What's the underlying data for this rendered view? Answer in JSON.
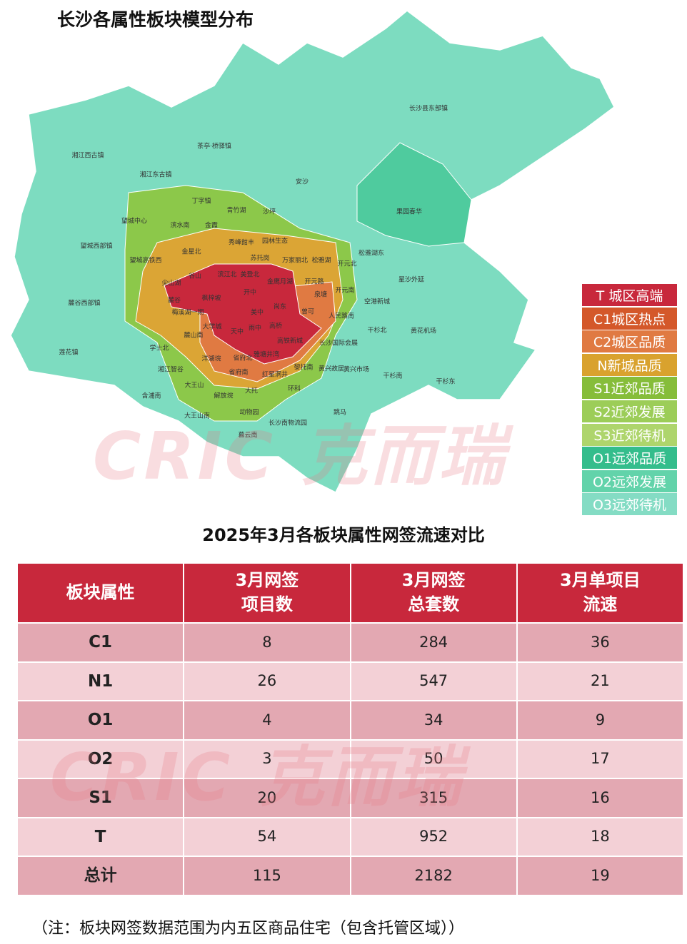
{
  "header": {
    "title": "长沙各属性板块模型分布"
  },
  "map": {
    "labels": [
      "长沙县东部镇",
      "茶亭·桥驿镇",
      "湘江西古镇",
      "湘江东古镇",
      "安沙",
      "丁字镇",
      "青竹湖",
      "沙坪",
      "果园春华",
      "望城中心",
      "滨水南",
      "金霞",
      "秀峰館丰",
      "园林生态",
      "望城西部镇",
      "金星北",
      "苏托岗",
      "万家丽北",
      "松雅湖",
      "开元北",
      "松雅湖东",
      "望城高铁西",
      "谷山",
      "滨江北",
      "美登北",
      "金鹰月湖",
      "开元路",
      "星沙外延",
      "尖山湖",
      "麓谷",
      "枫梓坡",
      "开中",
      "泉塘",
      "开元南",
      "空港新城",
      "麓谷西部镇",
      "梅溪湖一期",
      "美中",
      "尚东",
      "曾可",
      "人民路南",
      "大学城",
      "天中",
      "雨中",
      "高桥",
      "高铁新城",
      "麓山南",
      "干杉北",
      "黄花机场",
      "莲花镇",
      "学士北",
      "长沙国际会展",
      "洋湖垸",
      "省府北",
      "雅塘井湾",
      "湘江智谷",
      "黎托南",
      "黄兴故居",
      "黄兴市场",
      "干杉南",
      "干杉东",
      "省府南",
      "红星洞井",
      "大王山",
      "解放垸",
      "大托",
      "环科",
      "含浦南",
      "大王山南",
      "动物园",
      "跳马",
      "长沙南物流园",
      "暮云南"
    ],
    "legend": [
      {
        "label": "T 城区高端",
        "color": "#c8283c"
      },
      {
        "label": "C1城区热点",
        "color": "#d4582a"
      },
      {
        "label": "C2城区品质",
        "color": "#e07a42"
      },
      {
        "label": "N新城品质",
        "color": "#d9a22e"
      },
      {
        "label": "S1近郊品质",
        "color": "#86bd3a"
      },
      {
        "label": "S2近郊发展",
        "color": "#9ccd58"
      },
      {
        "label": "S3近郊待机",
        "color": "#aed56c"
      },
      {
        "label": "O1远郊品质",
        "color": "#34bd8c"
      },
      {
        "label": "O2远郊发展",
        "color": "#62d3aa"
      },
      {
        "label": "O3远郊待机",
        "color": "#84dcc4"
      }
    ],
    "watermark": "CRIC 克而瑞"
  },
  "table": {
    "title": "2025年3月各板块属性网签流速对比",
    "columns": [
      "板块属性",
      "3月网签\n项目数",
      "3月网签\n总套数",
      "3月单项目\n流速"
    ],
    "rows": [
      [
        "C1",
        8,
        284,
        36
      ],
      [
        "N1",
        26,
        547,
        21
      ],
      [
        "O1",
        4,
        34,
        9
      ],
      [
        "O2",
        3,
        50,
        17
      ],
      [
        "S1",
        20,
        315,
        16
      ],
      [
        "T",
        54,
        952,
        18
      ],
      [
        "总计",
        115,
        2182,
        19
      ]
    ],
    "note": "（注：板块网签数据范围为内五区商品住宅（包含托管区域））"
  }
}
